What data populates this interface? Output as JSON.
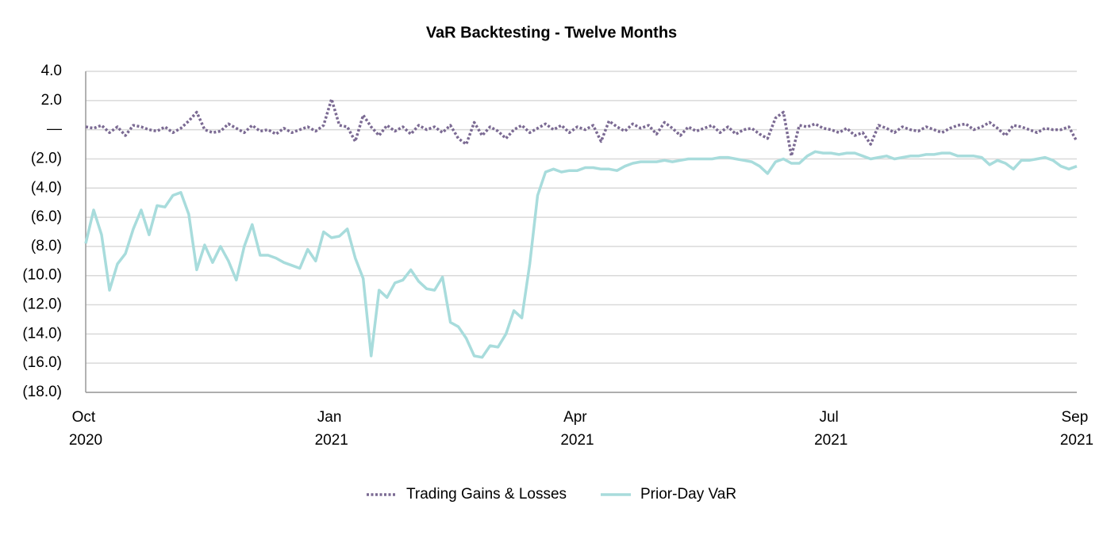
{
  "chart_data": {
    "type": "line",
    "title": "VaR Backtesting - Twelve Months",
    "categories": [
      "Oct 2020",
      null,
      null,
      null,
      null,
      null,
      null,
      null,
      null,
      null,
      null,
      null,
      null,
      null,
      null,
      null,
      null,
      null,
      null,
      null,
      null,
      null,
      null,
      null,
      null,
      null,
      null,
      null,
      null,
      null,
      null,
      "Jan 2021",
      null,
      null,
      null,
      null,
      null,
      null,
      null,
      null,
      null,
      null,
      null,
      null,
      null,
      null,
      null,
      null,
      null,
      null,
      null,
      null,
      null,
      null,
      null,
      null,
      null,
      null,
      null,
      null,
      null,
      null,
      "Apr 2021",
      null,
      null,
      null,
      null,
      null,
      null,
      null,
      null,
      null,
      null,
      null,
      null,
      null,
      null,
      null,
      null,
      null,
      null,
      null,
      null,
      null,
      null,
      null,
      null,
      null,
      null,
      null,
      null,
      null,
      null,
      null,
      "Jul 2021",
      null,
      null,
      null,
      null,
      null,
      null,
      null,
      null,
      null,
      null,
      null,
      null,
      null,
      null,
      null,
      null,
      null,
      null,
      null,
      null,
      null,
      null,
      null,
      null,
      null,
      null,
      null,
      null,
      null,
      null,
      "Sep 2021"
    ],
    "series": [
      {
        "name": "Trading Gains & Losses",
        "color": "#7b6a93",
        "dash": "dotted",
        "values": [
          0.2,
          0.1,
          0.3,
          -0.2,
          0.2,
          -0.4,
          0.3,
          0.2,
          0.0,
          -0.1,
          0.2,
          -0.2,
          0.1,
          0.6,
          1.2,
          0.0,
          -0.2,
          -0.1,
          0.4,
          0.1,
          -0.2,
          0.3,
          -0.1,
          0.0,
          -0.3,
          0.1,
          -0.2,
          0.0,
          0.2,
          -0.1,
          0.3,
          2.1,
          0.3,
          0.2,
          -0.8,
          1.0,
          0.2,
          -0.4,
          0.3,
          -0.1,
          0.2,
          -0.3,
          0.3,
          0.0,
          0.2,
          -0.2,
          0.3,
          -0.6,
          -1.0,
          0.5,
          -0.4,
          0.2,
          -0.1,
          -0.6,
          0.0,
          0.3,
          -0.2,
          0.1,
          0.4,
          0.0,
          0.3,
          -0.2,
          0.2,
          0.0,
          0.3,
          -0.8,
          0.6,
          0.2,
          -0.1,
          0.4,
          0.1,
          0.3,
          -0.3,
          0.5,
          0.1,
          -0.4,
          0.2,
          -0.1,
          0.1,
          0.3,
          -0.2,
          0.2,
          -0.3,
          0.0,
          0.1,
          -0.3,
          -0.6,
          0.8,
          1.2,
          -1.8,
          0.3,
          0.2,
          0.4,
          0.1,
          0.0,
          -0.2,
          0.1,
          -0.4,
          -0.2,
          -1.0,
          0.3,
          0.1,
          -0.2,
          0.2,
          0.0,
          -0.1,
          0.2,
          0.0,
          -0.2,
          0.1,
          0.3,
          0.4,
          0.0,
          0.2,
          0.5,
          0.1,
          -0.4,
          0.3,
          0.2,
          0.0,
          -0.2,
          0.1,
          0.0,
          0.0,
          0.2,
          -0.8
        ]
      },
      {
        "name": "Prior-Day VaR",
        "color": "#a8dcdc",
        "dash": "solid",
        "values": [
          -7.8,
          -5.5,
          -7.2,
          -11.0,
          -9.2,
          -8.5,
          -6.8,
          -5.5,
          -7.2,
          -5.2,
          -5.3,
          -4.5,
          -4.3,
          -5.8,
          -9.6,
          -7.9,
          -9.1,
          -8.0,
          -9.0,
          -10.3,
          -8.0,
          -6.5,
          -8.6,
          -8.6,
          -8.8,
          -9.1,
          -9.3,
          -9.5,
          -8.2,
          -9.0,
          -7.0,
          -7.4,
          -7.3,
          -6.8,
          -8.8,
          -10.2,
          -15.5,
          -11.0,
          -11.5,
          -10.5,
          -10.3,
          -9.6,
          -10.4,
          -10.9,
          -11.0,
          -10.1,
          -13.2,
          -13.5,
          -14.3,
          -15.5,
          -15.6,
          -14.8,
          -14.9,
          -14.0,
          -12.4,
          -12.9,
          -9.2,
          -4.5,
          -2.9,
          -2.7,
          -2.9,
          -2.8,
          -2.8,
          -2.6,
          -2.6,
          -2.7,
          -2.7,
          -2.8,
          -2.5,
          -2.3,
          -2.2,
          -2.2,
          -2.2,
          -2.1,
          -2.2,
          -2.1,
          -2.0,
          -2.0,
          -2.0,
          -2.0,
          -1.9,
          -1.9,
          -2.0,
          -2.1,
          -2.2,
          -2.5,
          -3.0,
          -2.2,
          -2.0,
          -2.3,
          -2.3,
          -1.8,
          -1.5,
          -1.6,
          -1.6,
          -1.7,
          -1.6,
          -1.6,
          -1.8,
          -2.0,
          -1.9,
          -1.8,
          -2.0,
          -1.9,
          -1.8,
          -1.8,
          -1.7,
          -1.7,
          -1.6,
          -1.6,
          -1.8,
          -1.8,
          -1.8,
          -1.9,
          -2.4,
          -2.1,
          -2.3,
          -2.7,
          -2.1,
          -2.1,
          -2.0,
          -1.9,
          -2.1,
          -2.5,
          -2.7,
          -2.5
        ]
      }
    ],
    "ylim": [
      -18,
      4
    ],
    "yticks": [
      {
        "value": -18,
        "label": "(18.0)"
      },
      {
        "value": -16,
        "label": "(16.0)"
      },
      {
        "value": -14,
        "label": "(14.0)"
      },
      {
        "value": -12,
        "label": "(12.0)"
      },
      {
        "value": -10,
        "label": "(10.0)"
      },
      {
        "value": -8,
        "label": "(8.0)"
      },
      {
        "value": -6,
        "label": "(6.0)"
      },
      {
        "value": -4,
        "label": "(4.0)"
      },
      {
        "value": -2,
        "label": "(2.0)"
      },
      {
        "value": 0,
        "label": "—"
      },
      {
        "value": 2,
        "label": "2.0"
      },
      {
        "value": 4,
        "label": "4.0"
      }
    ],
    "grid": true,
    "legend": "bottom"
  }
}
